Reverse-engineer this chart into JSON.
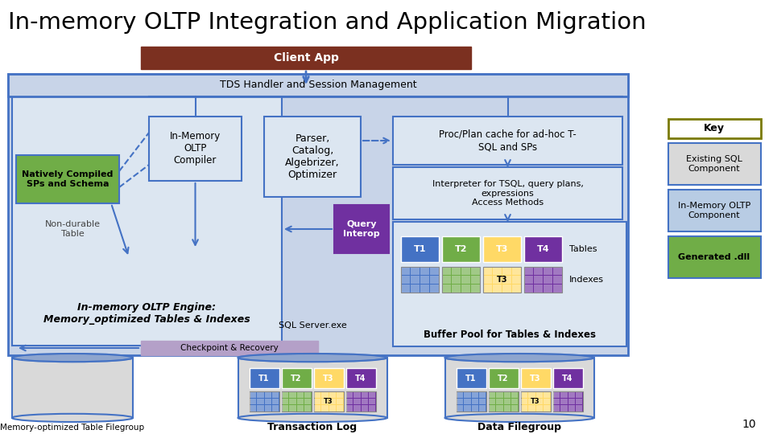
{
  "title": "In-memory OLTP Integration and Application Migration",
  "bg_color": "#ffffff",
  "main_box_color": "#c8d4e8",
  "blue_border": "#4472c4",
  "client_app_color": "#7b3020",
  "client_app_text": "Client App",
  "tds_text": "TDS Handler and Session Management",
  "in_memory_compiler_text": "In-Memory\nOLTP\nCompiler",
  "parser_text": "Parser,\nCatalog,\nAlgebrizer,\nOptimizer",
  "proc_plan_text": "Proc/Plan cache for ad-hoc T-\nSQL and SPs",
  "interpreter_text": "Interpreter for TSQL, query plans,\nexpressions\nAccess Methods",
  "natively_compiled_text": "Natively Compiled\nSPs and Schema",
  "natively_compiled_color": "#70ad47",
  "non_durable_text": "Non-durable\nTable",
  "query_interop_text": "Query\nInterop",
  "query_interop_color": "#7030a0",
  "engine_text": "In-memory OLTP Engine:\nMemory_optimized Tables & Indexes",
  "buffer_pool_text": "Buffer Pool for Tables & Indexes",
  "checkpoint_text": "Checkpoint & Recovery",
  "checkpoint_color": "#b4a0c8",
  "sql_server_text": "SQL Server.exe",
  "memory_fg_text": "Memory-optimized Table Filegroup",
  "transaction_log_text": "Transaction Log",
  "data_fg_text": "Data Filegroup",
  "page_num": "10",
  "key_text": "Key",
  "key_border_color": "#7a7a00",
  "existing_sql_text": "Existing SQL\nComponent",
  "existing_sql_color": "#d9d9d9",
  "inmem_oltp_text": "In-Memory OLTP\nComponent",
  "inmem_oltp_color": "#b8cce4",
  "generated_dll_text": "Generated .dll",
  "generated_dll_color": "#70ad47",
  "t1_color": "#4472c4",
  "t2_color": "#70ad47",
  "t3_color": "#ffd966",
  "t4_color": "#7030a0",
  "light_blue_box": "#dce6f1",
  "cyl_color": "#d9d9d9",
  "cyl_top_color": "#4472c4"
}
